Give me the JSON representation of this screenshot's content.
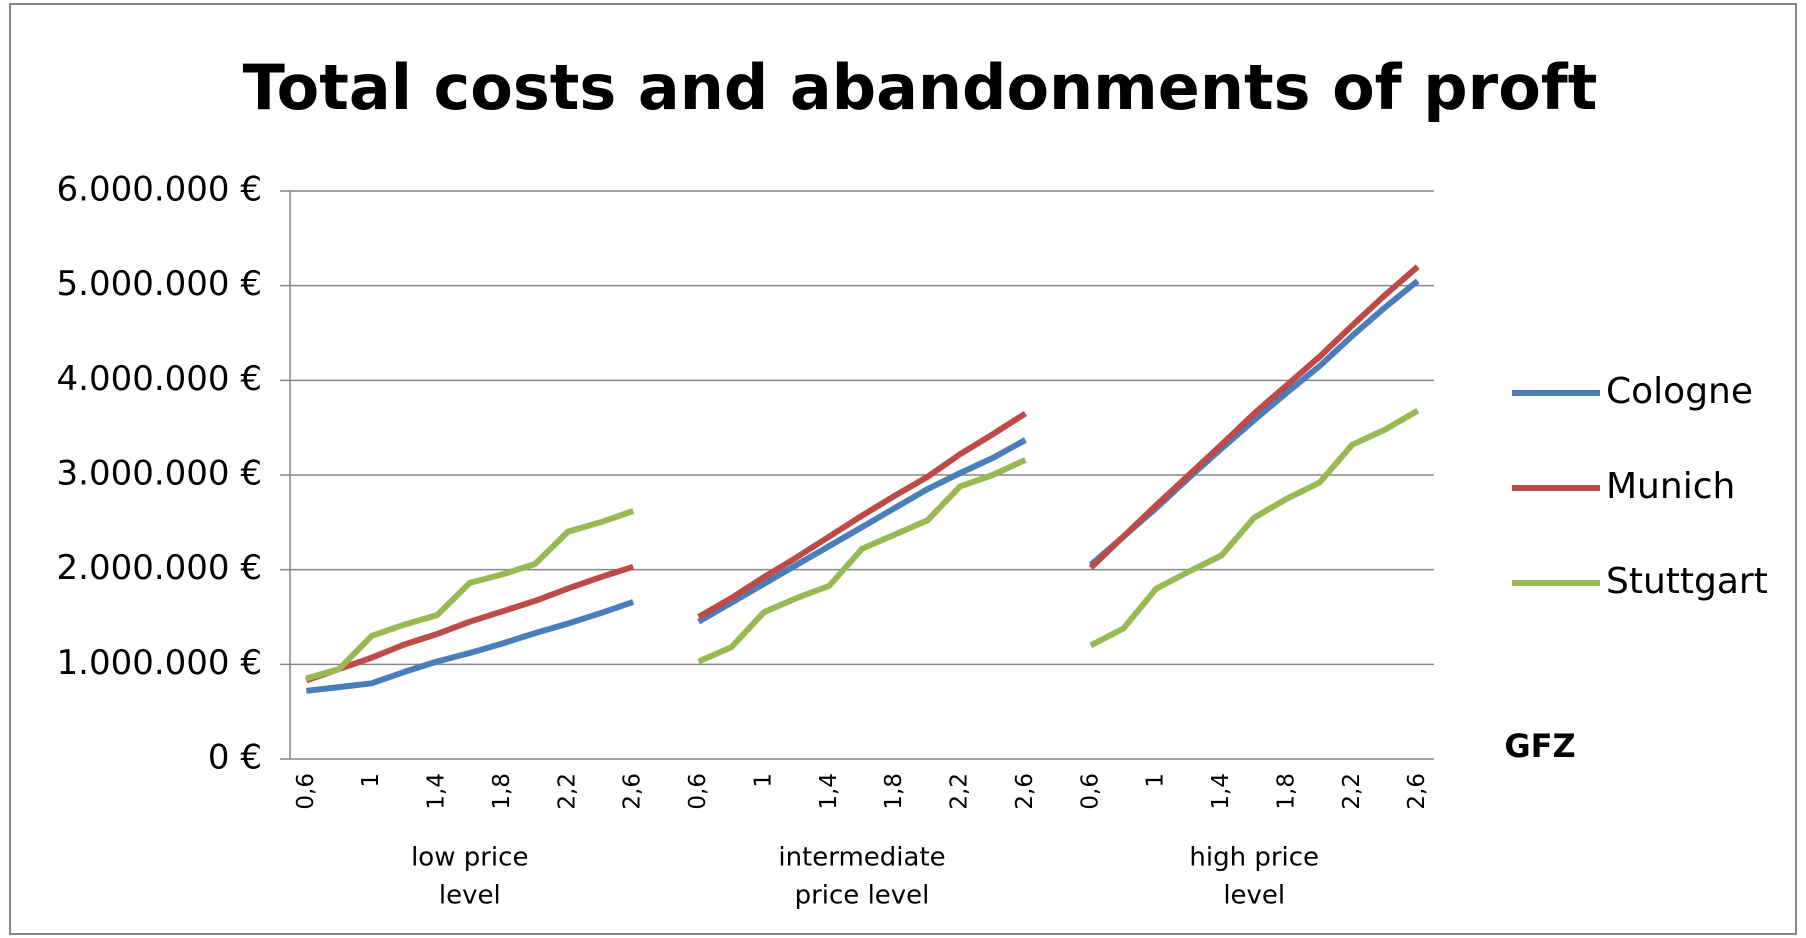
{
  "chart_data": {
    "type": "line",
    "title": "Total costs and abandonments of proft",
    "x_label": "GFZ",
    "group_labels": [
      [
        "low price",
        "level"
      ],
      [
        "intermediate",
        "price level"
      ],
      [
        "high price",
        "level"
      ]
    ],
    "categories": [
      "0,6",
      null,
      "1",
      null,
      "1,4",
      null,
      "1,8",
      null,
      "2,2",
      null,
      "2,6",
      null,
      "0,6",
      null,
      "1",
      null,
      "1,4",
      null,
      "1,8",
      null,
      "2,2",
      null,
      "2,6",
      null,
      "0,6",
      null,
      "1",
      null,
      "1,4",
      null,
      "1,8",
      null,
      "2,2",
      null,
      "2,6"
    ],
    "series": [
      {
        "name": "Cologne",
        "color": "#4a7ebb",
        "values": [
          720000,
          760000,
          800000,
          920000,
          1030000,
          1120000,
          1220000,
          1330000,
          1430000,
          1540000,
          1660000,
          null,
          1450000,
          1650000,
          1850000,
          2050000,
          2250000,
          2450000,
          2650000,
          2850000,
          3020000,
          3180000,
          3370000,
          null,
          2050000,
          2350000,
          2650000,
          2970000,
          3280000,
          3580000,
          3870000,
          4150000,
          4470000,
          4770000,
          5050000
        ]
      },
      {
        "name": "Munich",
        "color": "#be4b48",
        "values": [
          830000,
          950000,
          1070000,
          1210000,
          1320000,
          1450000,
          1560000,
          1670000,
          1800000,
          1920000,
          2030000,
          null,
          1500000,
          1700000,
          1920000,
          2130000,
          2350000,
          2570000,
          2780000,
          2980000,
          3220000,
          3430000,
          3650000,
          null,
          2020000,
          2350000,
          2680000,
          3000000,
          3320000,
          3650000,
          3950000,
          4250000,
          4580000,
          4900000,
          5200000
        ]
      },
      {
        "name": "Stuttgart",
        "color": "#98b954",
        "values": [
          850000,
          950000,
          1300000,
          1420000,
          1520000,
          1860000,
          1950000,
          2060000,
          2400000,
          2500000,
          2620000,
          null,
          1030000,
          1180000,
          1550000,
          1700000,
          1830000,
          2220000,
          2370000,
          2520000,
          2880000,
          3000000,
          3160000,
          null,
          1200000,
          1380000,
          1800000,
          1980000,
          2150000,
          2550000,
          2750000,
          2920000,
          3320000,
          3480000,
          3680000
        ]
      }
    ],
    "ylim": [
      0,
      6000000
    ],
    "yticks": [
      {
        "value": 0,
        "label": "0 €"
      },
      {
        "value": 1000000,
        "label": "1.000.000 €"
      },
      {
        "value": 2000000,
        "label": "2.000.000 €"
      },
      {
        "value": 3000000,
        "label": "3.000.000 €"
      },
      {
        "value": 4000000,
        "label": "4.000.000 €"
      },
      {
        "value": 5000000,
        "label": "5.000.000 €"
      },
      {
        "value": 6000000,
        "label": "6.000.000 €"
      }
    ],
    "grid": true,
    "legend": "right"
  }
}
